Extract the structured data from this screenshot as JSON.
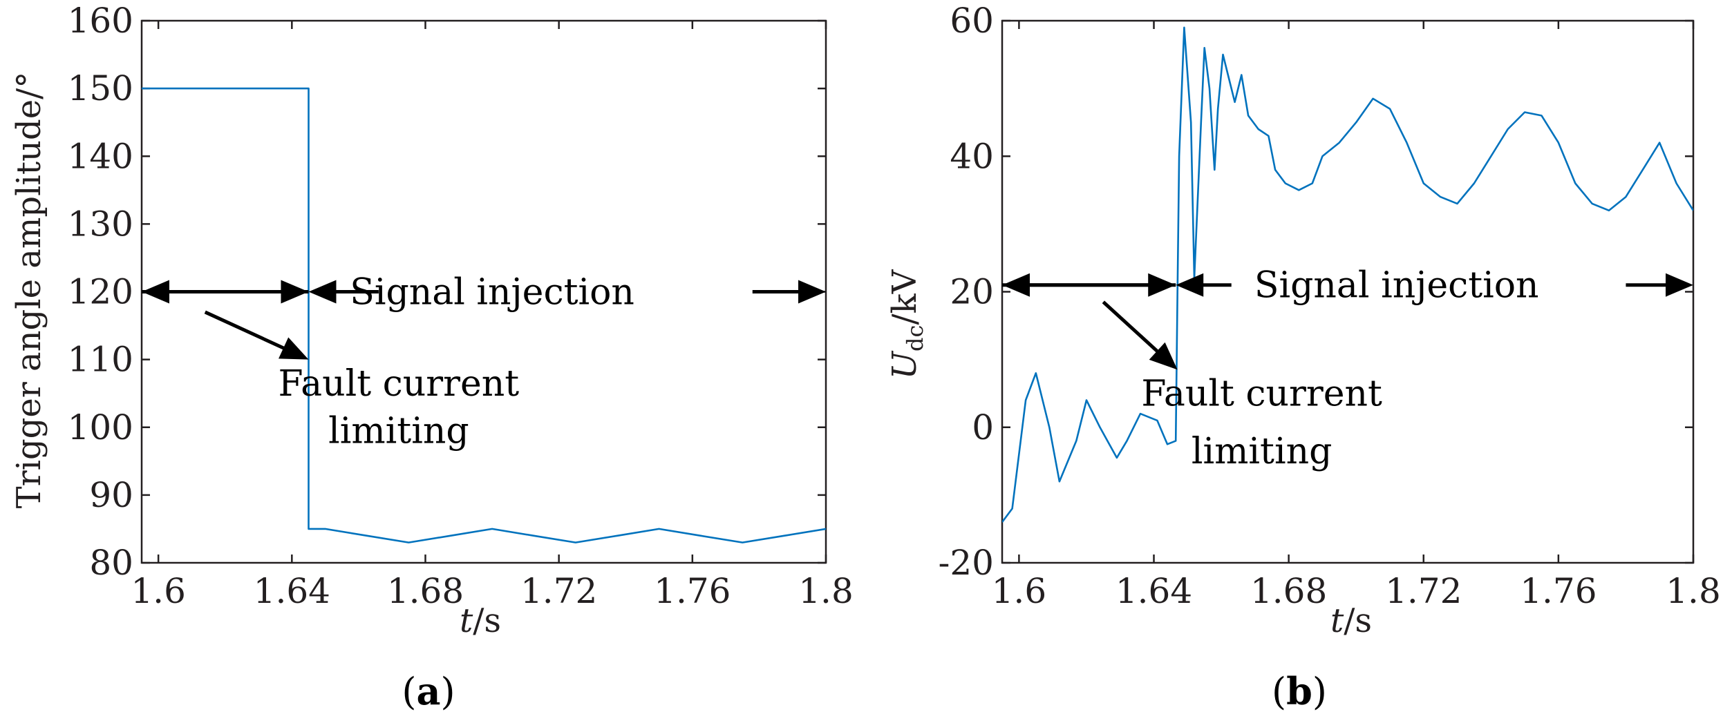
{
  "chart_data": [
    {
      "panel": "a",
      "panel_label": "(a)",
      "type": "line",
      "xlabel": "t/s",
      "ylabel": "Trigger angle amplitude/°",
      "xlim": [
        1.595,
        1.8
      ],
      "ylim": [
        80,
        160
      ],
      "xticks": [
        1.6,
        1.64,
        1.68,
        1.72,
        1.76,
        1.8
      ],
      "xtick_labels": [
        "1.6",
        "1.64",
        "1.68",
        "1.72",
        "1.76",
        "1.8"
      ],
      "yticks": [
        80,
        90,
        100,
        110,
        120,
        130,
        140,
        150,
        160
      ],
      "ytick_labels": [
        "80",
        "90",
        "100",
        "110",
        "120",
        "130",
        "140",
        "150",
        "160"
      ],
      "series": [
        {
          "name": "Trigger angle amplitude",
          "color": "#0072BD",
          "x": [
            1.595,
            1.645,
            1.645,
            1.65,
            1.6625,
            1.675,
            1.6875,
            1.7,
            1.7125,
            1.725,
            1.7375,
            1.75,
            1.7625,
            1.775,
            1.7875,
            1.8
          ],
          "y": [
            150,
            150,
            85,
            85,
            84,
            83,
            84,
            85,
            84,
            83,
            84,
            85,
            84,
            83,
            84,
            85
          ]
        }
      ],
      "annotations": [
        {
          "text": "Signal injection",
          "x": 1.7,
          "y": 120
        },
        {
          "text": "Fault current",
          "x": 1.672,
          "y": 106.5
        },
        {
          "text": "limiting",
          "x": 1.672,
          "y": 99.5
        }
      ],
      "arrows": [
        {
          "from": [
            1.645,
            120
          ],
          "to": [
            1.595,
            120
          ],
          "head": "end"
        },
        {
          "from": [
            1.595,
            120
          ],
          "to": [
            1.645,
            120
          ],
          "head": "end"
        },
        {
          "from": [
            1.666,
            120
          ],
          "to": [
            1.645,
            120
          ],
          "head": "end"
        },
        {
          "from": [
            1.778,
            120
          ],
          "to": [
            1.8,
            120
          ],
          "head": "end"
        },
        {
          "from": [
            1.614,
            117
          ],
          "to": [
            1.645,
            110
          ],
          "head": "end"
        }
      ]
    },
    {
      "panel": "b",
      "panel_label": "(b)",
      "type": "line",
      "xlabel": "t/s",
      "ylabel": "Udc/kV",
      "xlim": [
        1.595,
        1.8
      ],
      "ylim": [
        -20,
        60
      ],
      "xticks": [
        1.6,
        1.64,
        1.68,
        1.72,
        1.76,
        1.8
      ],
      "xtick_labels": [
        "1.6",
        "1.64",
        "1.68",
        "1.72",
        "1.76",
        "1.8"
      ],
      "yticks": [
        -20,
        0,
        20,
        40,
        60
      ],
      "ytick_labels": [
        "-20",
        "0",
        "20",
        "40",
        "60"
      ],
      "series": [
        {
          "name": "Udc",
          "color": "#0072BD",
          "x": [
            1.595,
            1.598,
            1.602,
            1.605,
            1.609,
            1.612,
            1.617,
            1.62,
            1.624,
            1.629,
            1.632,
            1.636,
            1.641,
            1.644,
            1.6465,
            1.647,
            1.6475,
            1.649,
            1.651,
            1.652,
            1.654,
            1.655,
            1.6565,
            1.658,
            1.659,
            1.6605,
            1.662,
            1.664,
            1.666,
            1.668,
            1.671,
            1.674,
            1.676,
            1.679,
            1.683,
            1.687,
            1.69,
            1.695,
            1.7,
            1.705,
            1.71,
            1.715,
            1.72,
            1.725,
            1.73,
            1.735,
            1.74,
            1.745,
            1.75,
            1.755,
            1.76,
            1.765,
            1.77,
            1.775,
            1.78,
            1.785,
            1.79,
            1.795,
            1.8
          ],
          "y": [
            -14,
            -12,
            4,
            8,
            0,
            -8,
            -2,
            4,
            0,
            -4.5,
            -2,
            2,
            1,
            -2.5,
            -2,
            20,
            40,
            59,
            45,
            22,
            45,
            56,
            50,
            38,
            47,
            55,
            52,
            48,
            52,
            46,
            44,
            43,
            38,
            36,
            35,
            36,
            40,
            42,
            45,
            48.5,
            47,
            42,
            36,
            34,
            33,
            36,
            40,
            44,
            46.5,
            46,
            42,
            36,
            33,
            32,
            34,
            38,
            42,
            36,
            32
          ]
        }
      ],
      "annotations": [
        {
          "text": "Signal injection",
          "x": 1.712,
          "y": 21
        },
        {
          "text": "Fault current",
          "x": 1.672,
          "y": 5
        },
        {
          "text": "limiting",
          "x": 1.672,
          "y": -3.5
        }
      ],
      "arrows": [
        {
          "from": [
            1.6465,
            21
          ],
          "to": [
            1.595,
            21
          ],
          "head": "end"
        },
        {
          "from": [
            1.595,
            21
          ],
          "to": [
            1.6465,
            21
          ],
          "head": "end"
        },
        {
          "from": [
            1.663,
            21
          ],
          "to": [
            1.6465,
            21
          ],
          "head": "end"
        },
        {
          "from": [
            1.78,
            21
          ],
          "to": [
            1.8,
            21
          ],
          "head": "end"
        },
        {
          "from": [
            1.625,
            18.5
          ],
          "to": [
            1.647,
            8.5
          ],
          "head": "end"
        }
      ]
    }
  ]
}
